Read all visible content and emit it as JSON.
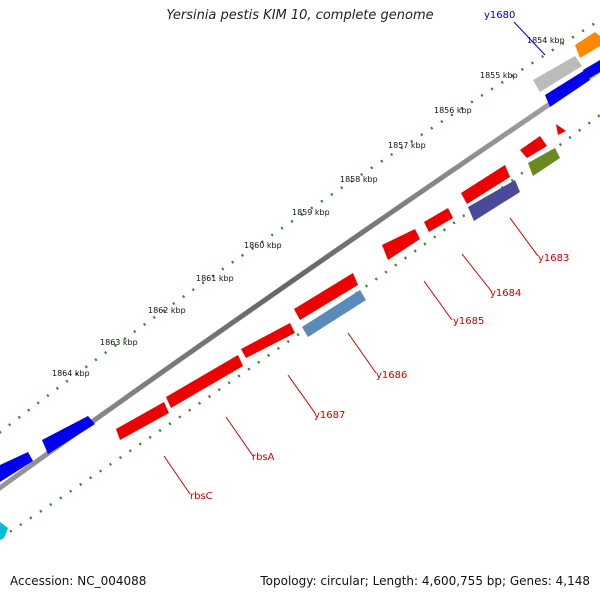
{
  "title": "Yersinia pestis KIM 10, complete genome",
  "footer": {
    "accession": "Accession: NC_004088",
    "summary": "Topology: circular; Length: 4,600,755 bp; Genes: 4,148"
  },
  "ticks": [
    "1854 kbp",
    "1855 kbp",
    "1856 kbp",
    "1857 kbp",
    "1858 kbp",
    "1859 kbp",
    "1860 kbp",
    "1861 kbp",
    "1862 kbp",
    "1863 kbp",
    "1864 kbp"
  ],
  "gene_labels": [
    "y1680",
    "y1683",
    "y1684",
    "y1685",
    "y1686",
    "y1687",
    "rbsA",
    "rbsC"
  ],
  "colors": {
    "backbone": "#777777",
    "tick_mark": "#2a8a2a",
    "gene_red": "#ee0000",
    "gene_blue": "#0000ee",
    "gene_slate": "#4a4a9a",
    "gene_steel": "#5a8ab8",
    "gene_olive": "#6a8a20",
    "gene_grey": "#bbbbbb",
    "gene_orange": "#ff8800",
    "gene_cyan": "#00bcd4",
    "label_red": "#cc0000",
    "label_blue": "#0000cc"
  }
}
